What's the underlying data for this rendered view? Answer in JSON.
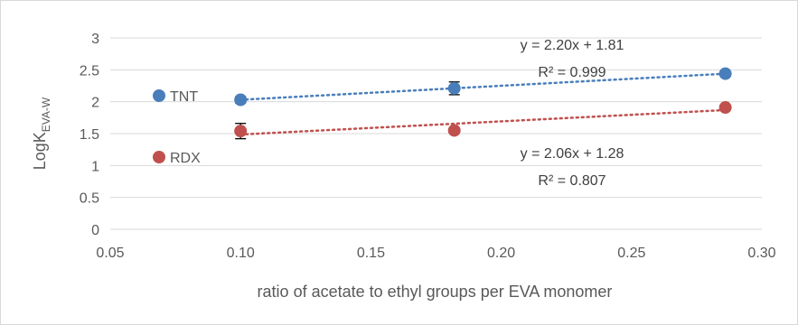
{
  "chart_data": {
    "type": "scatter",
    "title": "",
    "xlabel": "ratio of acetate to ethyl groups per EVA monomer",
    "ylabel": {
      "main": "LogK",
      "sub": "EVA-W"
    },
    "xlim": [
      0.05,
      0.3
    ],
    "ylim": [
      0,
      3
    ],
    "xticks": [
      "0.05",
      "0.10",
      "0.15",
      "0.20",
      "0.25",
      "0.30"
    ],
    "yticks": [
      "0",
      "0.5",
      "1",
      "1.5",
      "2",
      "2.5",
      "3"
    ],
    "grid": "horizontal",
    "legend_position": "left",
    "series": [
      {
        "name": "TNT",
        "color": "#4a7ebb",
        "x": [
          0.1,
          0.182,
          0.286
        ],
        "y": [
          2.03,
          2.21,
          2.44
        ],
        "yerr": [
          0.05,
          0.1,
          0.03
        ],
        "trendline": {
          "slope": 2.2,
          "intercept": 1.81,
          "equation": "y = 2.20x + 1.81",
          "r2_label": "R² = 0.999"
        }
      },
      {
        "name": "RDX",
        "color": "#c0504d",
        "x": [
          0.1,
          0.182,
          0.286
        ],
        "y": [
          1.54,
          1.55,
          1.91
        ],
        "yerr": [
          0.12,
          0.03,
          0.03
        ],
        "trendline": {
          "slope": 2.06,
          "intercept": 1.28,
          "equation": "y = 2.06x + 1.28",
          "r2_label": "R² = 0.807"
        }
      }
    ]
  }
}
